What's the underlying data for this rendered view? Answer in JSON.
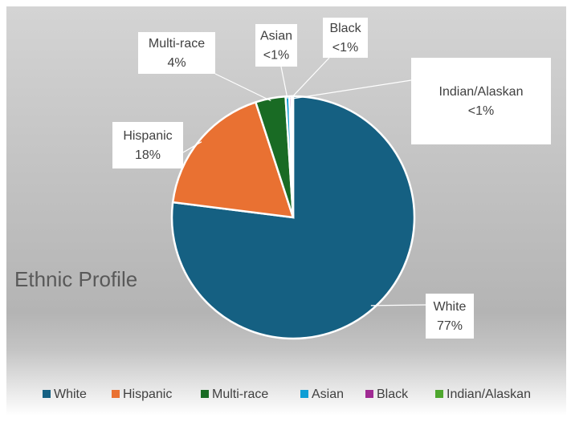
{
  "chart_data": {
    "type": "pie",
    "title": "Ethnic Profile",
    "categories": [
      "White",
      "Hispanic",
      "Multi-race",
      "Asian",
      "Black",
      "Indian/Alaskan"
    ],
    "values": [
      77,
      18,
      4,
      0.5,
      0.3,
      0.2
    ],
    "value_labels": [
      "77%",
      "18%",
      "4%",
      "<1%",
      "<1%",
      "<1%"
    ],
    "colors": [
      "#156082",
      "#e97132",
      "#196b24",
      "#0f9ed5",
      "#a02b93",
      "#4ea72e"
    ],
    "legend": "bottom"
  }
}
